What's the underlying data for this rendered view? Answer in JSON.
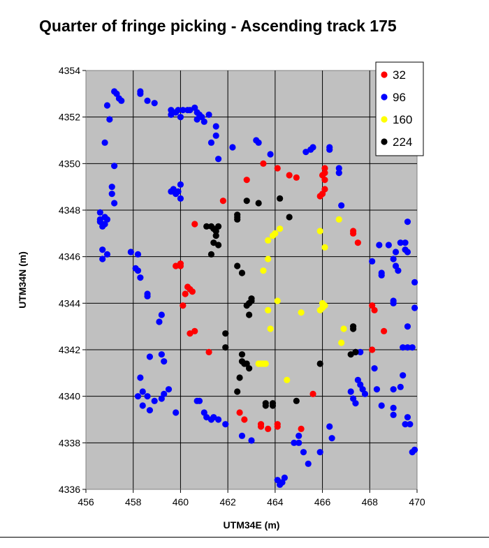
{
  "chart_data": {
    "type": "scatter",
    "title": "Quarter of fringe picking - Ascending track 175",
    "xlabel": "UTM34E (m)",
    "ylabel": "UTM34N (m)",
    "xlim": [
      456,
      470
    ],
    "ylim": [
      4336,
      4354
    ],
    "xticks": [
      456,
      458,
      460,
      462,
      464,
      466,
      468,
      470
    ],
    "yticks": [
      4336,
      4338,
      4340,
      4342,
      4344,
      4346,
      4348,
      4350,
      4352,
      4354
    ],
    "grid": true,
    "plot_background": "#c0c0c0",
    "legend_position": "top-right",
    "series": [
      {
        "name": "32",
        "color": "#ff0000",
        "points": [
          [
            459.8,
            4345.6
          ],
          [
            460.0,
            4345.6
          ],
          [
            460.0,
            4345.7
          ],
          [
            460.1,
            4343.9
          ],
          [
            460.2,
            4344.4
          ],
          [
            460.3,
            4344.7
          ],
          [
            460.4,
            4344.6
          ],
          [
            460.5,
            4344.5
          ],
          [
            460.4,
            4342.7
          ],
          [
            460.6,
            4342.8
          ],
          [
            460.6,
            4347.4
          ],
          [
            461.2,
            4341.9
          ],
          [
            461.8,
            4348.4
          ],
          [
            462.8,
            4349.3
          ],
          [
            463.5,
            4350.0
          ],
          [
            464.1,
            4349.8
          ],
          [
            464.6,
            4349.5
          ],
          [
            464.9,
            4349.4
          ],
          [
            466.0,
            4349.5
          ],
          [
            466.1,
            4349.8
          ],
          [
            466.1,
            4349.6
          ],
          [
            466.1,
            4349.3
          ],
          [
            466.1,
            4348.9
          ],
          [
            466.0,
            4348.7
          ],
          [
            465.9,
            4348.6
          ],
          [
            467.3,
            4347.1
          ],
          [
            467.3,
            4347.0
          ],
          [
            467.5,
            4346.6
          ],
          [
            468.1,
            4343.9
          ],
          [
            468.2,
            4343.7
          ],
          [
            468.6,
            4342.8
          ],
          [
            468.1,
            4342.0
          ],
          [
            465.6,
            4340.1
          ],
          [
            462.5,
            4339.3
          ],
          [
            462.7,
            4339.0
          ],
          [
            463.4,
            4338.8
          ],
          [
            463.4,
            4338.7
          ],
          [
            463.7,
            4338.6
          ],
          [
            464.1,
            4338.8
          ],
          [
            464.1,
            4338.7
          ],
          [
            465.1,
            4338.6
          ]
        ]
      },
      {
        "name": "96",
        "color": "#0000ff",
        "points": [
          [
            456.6,
            4347.9
          ],
          [
            456.6,
            4347.6
          ],
          [
            456.6,
            4347.5
          ],
          [
            456.7,
            4347.3
          ],
          [
            456.8,
            4347.4
          ],
          [
            456.8,
            4347.7
          ],
          [
            456.9,
            4347.6
          ],
          [
            456.7,
            4346.3
          ],
          [
            456.7,
            4345.9
          ],
          [
            456.9,
            4346.1
          ],
          [
            456.8,
            4350.9
          ],
          [
            456.9,
            4352.5
          ],
          [
            457.0,
            4351.9
          ],
          [
            457.2,
            4353.1
          ],
          [
            457.3,
            4353.0
          ],
          [
            457.4,
            4352.8
          ],
          [
            457.5,
            4352.7
          ],
          [
            457.2,
            4349.9
          ],
          [
            457.1,
            4349.0
          ],
          [
            457.1,
            4348.7
          ],
          [
            457.2,
            4348.3
          ],
          [
            457.9,
            4346.2
          ],
          [
            458.2,
            4346.1
          ],
          [
            458.1,
            4345.5
          ],
          [
            458.2,
            4345.4
          ],
          [
            458.3,
            4345.1
          ],
          [
            458.6,
            4344.4
          ],
          [
            458.6,
            4344.3
          ],
          [
            458.3,
            4353.1
          ],
          [
            458.3,
            4353.0
          ],
          [
            458.6,
            4352.7
          ],
          [
            458.9,
            4352.6
          ],
          [
            459.6,
            4352.3
          ],
          [
            459.6,
            4352.1
          ],
          [
            459.8,
            4352.2
          ],
          [
            459.9,
            4352.3
          ],
          [
            460.0,
            4352.0
          ],
          [
            460.1,
            4352.3
          ],
          [
            460.3,
            4352.3
          ],
          [
            460.4,
            4352.3
          ],
          [
            460.6,
            4352.4
          ],
          [
            460.7,
            4352.2
          ],
          [
            460.8,
            4352.1
          ],
          [
            460.7,
            4351.9
          ],
          [
            460.9,
            4352.0
          ],
          [
            461.2,
            4352.1
          ],
          [
            461.0,
            4351.8
          ],
          [
            461.5,
            4351.6
          ],
          [
            461.5,
            4351.2
          ],
          [
            461.3,
            4350.9
          ],
          [
            461.6,
            4350.2
          ],
          [
            462.2,
            4350.7
          ],
          [
            459.6,
            4348.8
          ],
          [
            459.7,
            4348.9
          ],
          [
            459.8,
            4348.7
          ],
          [
            459.9,
            4348.8
          ],
          [
            460.0,
            4349.1
          ],
          [
            460.0,
            4348.5
          ],
          [
            459.2,
            4343.5
          ],
          [
            459.1,
            4343.2
          ],
          [
            458.7,
            4341.7
          ],
          [
            459.2,
            4341.8
          ],
          [
            459.3,
            4341.5
          ],
          [
            458.2,
            4340.0
          ],
          [
            458.3,
            4340.8
          ],
          [
            458.4,
            4340.2
          ],
          [
            458.4,
            4339.6
          ],
          [
            458.6,
            4340.0
          ],
          [
            458.7,
            4339.4
          ],
          [
            458.9,
            4339.8
          ],
          [
            459.2,
            4339.9
          ],
          [
            459.3,
            4340.1
          ],
          [
            459.5,
            4340.3
          ],
          [
            459.8,
            4339.3
          ],
          [
            460.7,
            4339.8
          ],
          [
            460.8,
            4339.8
          ],
          [
            461.0,
            4339.3
          ],
          [
            461.1,
            4339.1
          ],
          [
            461.3,
            4339.0
          ],
          [
            461.4,
            4339.1
          ],
          [
            461.6,
            4339.0
          ],
          [
            461.9,
            4338.8
          ],
          [
            462.6,
            4338.3
          ],
          [
            463.0,
            4338.1
          ],
          [
            463.2,
            4351.0
          ],
          [
            463.3,
            4350.9
          ],
          [
            463.8,
            4350.4
          ],
          [
            465.3,
            4350.5
          ],
          [
            465.5,
            4350.6
          ],
          [
            465.6,
            4350.7
          ],
          [
            466.3,
            4350.7
          ],
          [
            466.3,
            4350.6
          ],
          [
            466.7,
            4349.8
          ],
          [
            466.7,
            4349.6
          ],
          [
            466.8,
            4348.2
          ],
          [
            464.1,
            4336.4
          ],
          [
            464.2,
            4336.2
          ],
          [
            464.3,
            4336.3
          ],
          [
            464.4,
            4336.5
          ],
          [
            464.8,
            4338.0
          ],
          [
            465.0,
            4338.0
          ],
          [
            465.0,
            4338.3
          ],
          [
            465.2,
            4337.6
          ],
          [
            465.4,
            4337.1
          ],
          [
            465.9,
            4337.6
          ],
          [
            466.3,
            4338.7
          ],
          [
            466.4,
            4338.2
          ],
          [
            467.2,
            4340.2
          ],
          [
            467.3,
            4339.9
          ],
          [
            467.4,
            4339.7
          ],
          [
            467.5,
            4340.7
          ],
          [
            467.6,
            4340.5
          ],
          [
            467.7,
            4340.3
          ],
          [
            467.8,
            4340.1
          ],
          [
            467.4,
            4341.9
          ],
          [
            467.6,
            4341.9
          ],
          [
            468.2,
            4341.2
          ],
          [
            468.3,
            4340.3
          ],
          [
            468.5,
            4339.6
          ],
          [
            468.1,
            4345.8
          ],
          [
            468.4,
            4346.5
          ],
          [
            468.5,
            4345.2
          ],
          [
            468.5,
            4345.3
          ],
          [
            468.8,
            4346.5
          ],
          [
            469.1,
            4346.2
          ],
          [
            469.0,
            4345.9
          ],
          [
            469.1,
            4345.6
          ],
          [
            469.2,
            4345.4
          ],
          [
            469.3,
            4346.6
          ],
          [
            469.5,
            4346.6
          ],
          [
            469.5,
            4346.3
          ],
          [
            469.6,
            4346.2
          ],
          [
            469.6,
            4347.5
          ],
          [
            469.0,
            4344.1
          ],
          [
            469.0,
            4344.0
          ],
          [
            469.9,
            4344.9
          ],
          [
            469.9,
            4343.8
          ],
          [
            469.6,
            4343.0
          ],
          [
            469.4,
            4342.1
          ],
          [
            469.6,
            4342.1
          ],
          [
            469.8,
            4342.1
          ],
          [
            469.0,
            4340.3
          ],
          [
            469.3,
            4340.4
          ],
          [
            469.4,
            4340.9
          ],
          [
            469.0,
            4339.5
          ],
          [
            469.0,
            4339.2
          ],
          [
            469.5,
            4338.8
          ],
          [
            469.6,
            4339.1
          ],
          [
            469.7,
            4338.8
          ],
          [
            469.8,
            4337.6
          ],
          [
            469.9,
            4337.7
          ]
        ]
      },
      {
        "name": "160",
        "color": "#ffff00",
        "points": [
          [
            463.5,
            4345.4
          ],
          [
            463.7,
            4345.9
          ],
          [
            463.7,
            4346.7
          ],
          [
            463.9,
            4346.9
          ],
          [
            464.0,
            4347.0
          ],
          [
            464.2,
            4347.2
          ],
          [
            464.1,
            4344.1
          ],
          [
            463.7,
            4343.7
          ],
          [
            463.8,
            4342.9
          ],
          [
            463.3,
            4341.4
          ],
          [
            463.4,
            4341.4
          ],
          [
            463.5,
            4341.4
          ],
          [
            463.6,
            4341.4
          ],
          [
            464.5,
            4340.7
          ],
          [
            465.1,
            4343.6
          ],
          [
            465.9,
            4343.7
          ],
          [
            466.0,
            4343.8
          ],
          [
            466.0,
            4344.0
          ],
          [
            466.1,
            4343.9
          ],
          [
            465.9,
            4347.1
          ],
          [
            466.1,
            4346.4
          ],
          [
            466.7,
            4347.6
          ],
          [
            466.8,
            4342.3
          ],
          [
            466.9,
            4342.9
          ]
        ]
      },
      {
        "name": "224",
        "color": "#000000",
        "points": [
          [
            461.1,
            4347.3
          ],
          [
            461.3,
            4347.3
          ],
          [
            461.4,
            4347.2
          ],
          [
            461.5,
            4347.1
          ],
          [
            461.6,
            4347.3
          ],
          [
            461.5,
            4346.9
          ],
          [
            461.4,
            4346.6
          ],
          [
            461.6,
            4346.5
          ],
          [
            461.3,
            4346.1
          ],
          [
            462.4,
            4347.8
          ],
          [
            462.4,
            4347.6
          ],
          [
            462.4,
            4347.7
          ],
          [
            462.8,
            4348.4
          ],
          [
            463.3,
            4348.3
          ],
          [
            464.2,
            4348.5
          ],
          [
            464.6,
            4347.7
          ],
          [
            462.4,
            4345.6
          ],
          [
            462.6,
            4345.3
          ],
          [
            462.8,
            4343.9
          ],
          [
            462.9,
            4344.0
          ],
          [
            463.0,
            4344.1
          ],
          [
            463.0,
            4344.2
          ],
          [
            462.9,
            4343.5
          ],
          [
            461.9,
            4342.7
          ],
          [
            461.9,
            4342.1
          ],
          [
            462.6,
            4341.8
          ],
          [
            462.7,
            4341.4
          ],
          [
            462.8,
            4341.4
          ],
          [
            462.9,
            4341.2
          ],
          [
            462.6,
            4341.5
          ],
          [
            462.5,
            4340.8
          ],
          [
            462.4,
            4340.2
          ],
          [
            463.6,
            4339.6
          ],
          [
            463.6,
            4339.7
          ],
          [
            463.9,
            4339.7
          ],
          [
            463.9,
            4339.6
          ],
          [
            464.9,
            4339.8
          ],
          [
            465.9,
            4341.4
          ],
          [
            467.3,
            4343.0
          ],
          [
            467.3,
            4342.9
          ],
          [
            467.2,
            4341.8
          ],
          [
            467.4,
            4341.9
          ]
        ]
      }
    ]
  }
}
